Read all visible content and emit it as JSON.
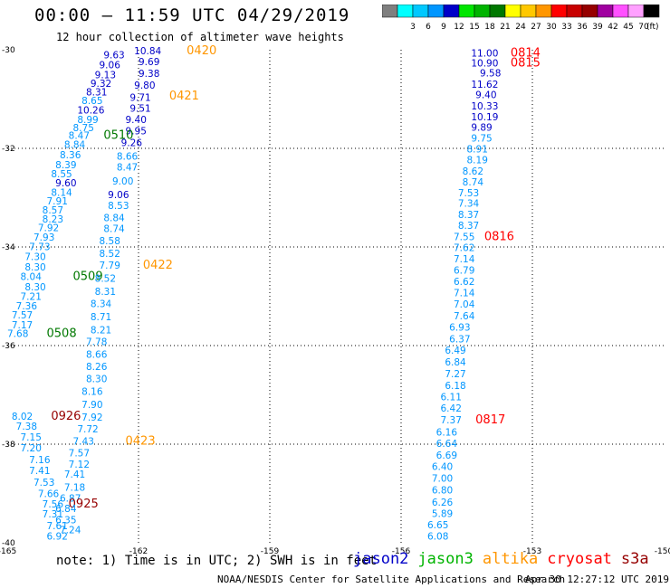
{
  "header": {
    "title": "00:00 – 11:59 UTC 04/29/2019",
    "subtitle": "12 hour collection of altimeter wave heights"
  },
  "colorbar": {
    "unit": "(ft)",
    "bins": [
      {
        "label": "",
        "color": "#7f7f7f"
      },
      {
        "label": "3",
        "color": "#00ffff"
      },
      {
        "label": "6",
        "color": "#00c8ff"
      },
      {
        "label": "9",
        "color": "#0096ff"
      },
      {
        "label": "12",
        "color": "#0000c8"
      },
      {
        "label": "15",
        "color": "#00e600"
      },
      {
        "label": "18",
        "color": "#00b400"
      },
      {
        "label": "21",
        "color": "#007800"
      },
      {
        "label": "24",
        "color": "#ffff00"
      },
      {
        "label": "27",
        "color": "#ffc800"
      },
      {
        "label": "30",
        "color": "#ff9600"
      },
      {
        "label": "33",
        "color": "#ff0000"
      },
      {
        "label": "36",
        "color": "#c80000"
      },
      {
        "label": "39",
        "color": "#960000"
      },
      {
        "label": "42",
        "color": "#a000a0"
      },
      {
        "label": "45",
        "color": "#ff50ff"
      },
      {
        "label": "70",
        "color": "#ffa0ff"
      },
      {
        "label": "",
        "color": "#000000"
      }
    ]
  },
  "map": {
    "lon_ticks": [
      "-165",
      "-162",
      "-159",
      "-156",
      "-153",
      "-150"
    ],
    "lat_ticks": [
      "-30",
      "-32",
      "-34",
      "-36",
      "-38",
      "-40"
    ],
    "lon_range": [
      -165,
      -150
    ],
    "lat_range": [
      -40,
      -30
    ],
    "gridlines": true
  },
  "observations": [
    {
      "v": "9.63",
      "c": "#0000c8",
      "lon": -162.8,
      "lat": -30.1
    },
    {
      "v": "10.84",
      "c": "#0000c8",
      "lon": -162.1,
      "lat": -30.02
    },
    {
      "v": "0420",
      "c": "#ff9600",
      "lon": -160.9,
      "lat": -30.02
    },
    {
      "v": "9.06",
      "c": "#0000c8",
      "lon": -162.9,
      "lat": -30.3
    },
    {
      "v": "9.69",
      "c": "#0000c8",
      "lon": -162.0,
      "lat": -30.24
    },
    {
      "v": "9.13",
      "c": "#0000c8",
      "lon": -163.0,
      "lat": -30.5
    },
    {
      "v": "9.38",
      "c": "#0000c8",
      "lon": -162.0,
      "lat": -30.48
    },
    {
      "v": "9.32",
      "c": "#0000c8",
      "lon": -163.1,
      "lat": -30.68
    },
    {
      "v": "9.80",
      "c": "#0000c8",
      "lon": -162.1,
      "lat": -30.72
    },
    {
      "v": "8.31",
      "c": "#0000c8",
      "lon": -163.2,
      "lat": -30.85
    },
    {
      "v": "8.65",
      "c": "#0096ff",
      "lon": -163.3,
      "lat": -31.03
    },
    {
      "v": "9.71",
      "c": "#0000c8",
      "lon": -162.2,
      "lat": -30.96
    },
    {
      "v": "0421",
      "c": "#ff9600",
      "lon": -161.3,
      "lat": -30.94
    },
    {
      "v": "10.26",
      "c": "#0000c8",
      "lon": -163.4,
      "lat": -31.22
    },
    {
      "v": "9.51",
      "c": "#0000c8",
      "lon": -162.2,
      "lat": -31.18
    },
    {
      "v": "8.99",
      "c": "#0096ff",
      "lon": -163.4,
      "lat": -31.41
    },
    {
      "v": "9.40",
      "c": "#0000c8",
      "lon": -162.3,
      "lat": -31.41
    },
    {
      "v": "8.75",
      "c": "#0096ff",
      "lon": -163.5,
      "lat": -31.58
    },
    {
      "v": "9.95",
      "c": "#0000c8",
      "lon": -162.3,
      "lat": -31.64
    },
    {
      "v": "8.47",
      "c": "#0096ff",
      "lon": -163.6,
      "lat": -31.73
    },
    {
      "v": "0510",
      "c": "#007800",
      "lon": -162.8,
      "lat": -31.73
    },
    {
      "v": "8.84",
      "c": "#0096ff",
      "lon": -163.7,
      "lat": -31.92
    },
    {
      "v": "9.26",
      "c": "#0000c8",
      "lon": -162.4,
      "lat": -31.88
    },
    {
      "v": "8.36",
      "c": "#0096ff",
      "lon": -163.8,
      "lat": -32.13
    },
    {
      "v": "8.66",
      "c": "#0096ff",
      "lon": -162.5,
      "lat": -32.16
    },
    {
      "v": "8.39",
      "c": "#0096ff",
      "lon": -163.9,
      "lat": -32.33
    },
    {
      "v": "8.47",
      "c": "#0096ff",
      "lon": -162.5,
      "lat": -32.38
    },
    {
      "v": "8.55",
      "c": "#0096ff",
      "lon": -164.0,
      "lat": -32.51
    },
    {
      "v": "9.60",
      "c": "#0000c8",
      "lon": -163.9,
      "lat": -32.7
    },
    {
      "v": "9.00",
      "c": "#0096ff",
      "lon": -162.6,
      "lat": -32.66
    },
    {
      "v": "8.14",
      "c": "#0096ff",
      "lon": -164.0,
      "lat": -32.89
    },
    {
      "v": "9.06",
      "c": "#0000c8",
      "lon": -162.7,
      "lat": -32.94
    },
    {
      "v": "7.91",
      "c": "#0096ff",
      "lon": -164.1,
      "lat": -33.06
    },
    {
      "v": "8.53",
      "c": "#0096ff",
      "lon": -162.7,
      "lat": -33.16
    },
    {
      "v": "8.57",
      "c": "#0096ff",
      "lon": -164.2,
      "lat": -33.25
    },
    {
      "v": "8.84",
      "c": "#0096ff",
      "lon": -162.8,
      "lat": -33.4
    },
    {
      "v": "8.23",
      "c": "#0096ff",
      "lon": -164.2,
      "lat": -33.43
    },
    {
      "v": "8.74",
      "c": "#0096ff",
      "lon": -162.8,
      "lat": -33.62
    },
    {
      "v": "7.92",
      "c": "#0096ff",
      "lon": -164.3,
      "lat": -33.61
    },
    {
      "v": "7.93",
      "c": "#0096ff",
      "lon": -164.4,
      "lat": -33.8
    },
    {
      "v": "8.58",
      "c": "#0096ff",
      "lon": -162.9,
      "lat": -33.87
    },
    {
      "v": "7.73",
      "c": "#0096ff",
      "lon": -164.5,
      "lat": -33.99
    },
    {
      "v": "8.52",
      "c": "#0096ff",
      "lon": -162.9,
      "lat": -34.13
    },
    {
      "v": "7.30",
      "c": "#0096ff",
      "lon": -164.6,
      "lat": -34.19
    },
    {
      "v": "7.79",
      "c": "#0096ff",
      "lon": -162.9,
      "lat": -34.37
    },
    {
      "v": "0422",
      "c": "#ff9600",
      "lon": -161.9,
      "lat": -34.37
    },
    {
      "v": "8.30",
      "c": "#0096ff",
      "lon": -164.6,
      "lat": -34.4
    },
    {
      "v": "8.04",
      "c": "#0096ff",
      "lon": -164.7,
      "lat": -34.6
    },
    {
      "v": "0509",
      "c": "#007800",
      "lon": -163.5,
      "lat": -34.6
    },
    {
      "v": "8.52",
      "c": "#0096ff",
      "lon": -163.0,
      "lat": -34.63
    },
    {
      "v": "8.30",
      "c": "#0096ff",
      "lon": -164.6,
      "lat": -34.81
    },
    {
      "v": "8.31",
      "c": "#0096ff",
      "lon": -163.0,
      "lat": -34.9
    },
    {
      "v": "7.21",
      "c": "#0096ff",
      "lon": -164.7,
      "lat": -35.0
    },
    {
      "v": "8.34",
      "c": "#0096ff",
      "lon": -163.1,
      "lat": -35.15
    },
    {
      "v": "7.36",
      "c": "#0096ff",
      "lon": -164.8,
      "lat": -35.19
    },
    {
      "v": "7.57",
      "c": "#0096ff",
      "lon": -164.9,
      "lat": -35.38
    },
    {
      "v": "8.71",
      "c": "#0096ff",
      "lon": -163.1,
      "lat": -35.41
    },
    {
      "v": "7.17",
      "c": "#0096ff",
      "lon": -164.9,
      "lat": -35.58
    },
    {
      "v": "8.21",
      "c": "#0096ff",
      "lon": -163.1,
      "lat": -35.68
    },
    {
      "v": "7.68",
      "c": "#0096ff",
      "lon": -165.0,
      "lat": -35.75
    },
    {
      "v": "0508",
      "c": "#007800",
      "lon": -164.1,
      "lat": -35.75
    },
    {
      "v": "7.78",
      "c": "#0096ff",
      "lon": -163.2,
      "lat": -35.92
    },
    {
      "v": "8.66",
      "c": "#0096ff",
      "lon": -163.2,
      "lat": -36.17
    },
    {
      "v": "8.26",
      "c": "#0096ff",
      "lon": -163.2,
      "lat": -36.42
    },
    {
      "v": "8.30",
      "c": "#0096ff",
      "lon": -163.2,
      "lat": -36.67
    },
    {
      "v": "8.16",
      "c": "#0096ff",
      "lon": -163.3,
      "lat": -36.93
    },
    {
      "v": "7.90",
      "c": "#0096ff",
      "lon": -163.3,
      "lat": -37.19
    },
    {
      "v": "8.02",
      "c": "#0096ff",
      "lon": -164.9,
      "lat": -37.43
    },
    {
      "v": "0926",
      "c": "#960000",
      "lon": -164.0,
      "lat": -37.43
    },
    {
      "v": "7.92",
      "c": "#0096ff",
      "lon": -163.3,
      "lat": -37.45
    },
    {
      "v": "7.38",
      "c": "#0096ff",
      "lon": -164.8,
      "lat": -37.63
    },
    {
      "v": "7.72",
      "c": "#0096ff",
      "lon": -163.4,
      "lat": -37.69
    },
    {
      "v": "7.15",
      "c": "#0096ff",
      "lon": -164.7,
      "lat": -37.85
    },
    {
      "v": "7.43",
      "c": "#0096ff",
      "lon": -163.5,
      "lat": -37.94
    },
    {
      "v": "0423",
      "c": "#ff9600",
      "lon": -162.3,
      "lat": -37.94
    },
    {
      "v": "7.20",
      "c": "#0096ff",
      "lon": -164.7,
      "lat": -38.07
    },
    {
      "v": "7.57",
      "c": "#0096ff",
      "lon": -163.6,
      "lat": -38.17
    },
    {
      "v": "7.16",
      "c": "#0096ff",
      "lon": -164.5,
      "lat": -38.31
    },
    {
      "v": "7.12",
      "c": "#0096ff",
      "lon": -163.6,
      "lat": -38.4
    },
    {
      "v": "7.41",
      "c": "#0096ff",
      "lon": -164.5,
      "lat": -38.53
    },
    {
      "v": "7.41",
      "c": "#0096ff",
      "lon": -163.7,
      "lat": -38.61
    },
    {
      "v": "7.53",
      "c": "#0096ff",
      "lon": -164.4,
      "lat": -38.77
    },
    {
      "v": "7.18",
      "c": "#0096ff",
      "lon": -163.7,
      "lat": -38.87
    },
    {
      "v": "7.66",
      "c": "#0096ff",
      "lon": -164.3,
      "lat": -39.0
    },
    {
      "v": "6.87",
      "c": "#0096ff",
      "lon": -163.8,
      "lat": -39.09
    },
    {
      "v": "7.56",
      "c": "#0096ff",
      "lon": -164.2,
      "lat": -39.21
    },
    {
      "v": "0925",
      "c": "#960000",
      "lon": -163.6,
      "lat": -39.21
    },
    {
      "v": "6.84",
      "c": "#0096ff",
      "lon": -163.9,
      "lat": -39.3
    },
    {
      "v": "7.31",
      "c": "#0096ff",
      "lon": -164.2,
      "lat": -39.41
    },
    {
      "v": "6.35",
      "c": "#0096ff",
      "lon": -163.9,
      "lat": -39.53
    },
    {
      "v": "7.61",
      "c": "#0096ff",
      "lon": -164.1,
      "lat": -39.65
    },
    {
      "v": "7.24",
      "c": "#0096ff",
      "lon": -163.8,
      "lat": -39.73
    },
    {
      "v": "6.92",
      "c": "#0096ff",
      "lon": -164.1,
      "lat": -39.86
    },
    {
      "v": "11.00",
      "c": "#0000c8",
      "lon": -154.4,
      "lat": -30.06
    },
    {
      "v": "0814",
      "c": "#ff0000",
      "lon": -153.5,
      "lat": -30.06
    },
    {
      "v": "10.90",
      "c": "#0000c8",
      "lon": -154.4,
      "lat": -30.27
    },
    {
      "v": "0815",
      "c": "#ff0000",
      "lon": -153.5,
      "lat": -30.27
    },
    {
      "v": "9.58",
      "c": "#0000c8",
      "lon": -154.2,
      "lat": -30.47
    },
    {
      "v": "11.62",
      "c": "#0000c8",
      "lon": -154.4,
      "lat": -30.7
    },
    {
      "v": "9.40",
      "c": "#0000c8",
      "lon": -154.3,
      "lat": -30.91
    },
    {
      "v": "10.33",
      "c": "#0000c8",
      "lon": -154.4,
      "lat": -31.14
    },
    {
      "v": "10.19",
      "c": "#0000c8",
      "lon": -154.4,
      "lat": -31.36
    },
    {
      "v": "9.89",
      "c": "#0000c8",
      "lon": -154.4,
      "lat": -31.57
    },
    {
      "v": "9.75",
      "c": "#0096ff",
      "lon": -154.4,
      "lat": -31.79
    },
    {
      "v": "8.91",
      "c": "#0096ff",
      "lon": -154.5,
      "lat": -32.01
    },
    {
      "v": "8.19",
      "c": "#0096ff",
      "lon": -154.5,
      "lat": -32.23
    },
    {
      "v": "8.62",
      "c": "#0096ff",
      "lon": -154.6,
      "lat": -32.46
    },
    {
      "v": "8.74",
      "c": "#0096ff",
      "lon": -154.6,
      "lat": -32.68
    },
    {
      "v": "7.53",
      "c": "#0096ff",
      "lon": -154.7,
      "lat": -32.9
    },
    {
      "v": "7.34",
      "c": "#0096ff",
      "lon": -154.7,
      "lat": -33.11
    },
    {
      "v": "8.37",
      "c": "#0096ff",
      "lon": -154.7,
      "lat": -33.34
    },
    {
      "v": "8.37",
      "c": "#0096ff",
      "lon": -154.7,
      "lat": -33.56
    },
    {
      "v": "7.55",
      "c": "#0096ff",
      "lon": -154.8,
      "lat": -33.79
    },
    {
      "v": "0816",
      "c": "#ff0000",
      "lon": -154.1,
      "lat": -33.79
    },
    {
      "v": "7.62",
      "c": "#0096ff",
      "lon": -154.8,
      "lat": -34.01
    },
    {
      "v": "7.14",
      "c": "#0096ff",
      "lon": -154.8,
      "lat": -34.24
    },
    {
      "v": "6.79",
      "c": "#0096ff",
      "lon": -154.8,
      "lat": -34.47
    },
    {
      "v": "6.62",
      "c": "#0096ff",
      "lon": -154.8,
      "lat": -34.7
    },
    {
      "v": "7.14",
      "c": "#0096ff",
      "lon": -154.8,
      "lat": -34.93
    },
    {
      "v": "7.04",
      "c": "#0096ff",
      "lon": -154.8,
      "lat": -35.16
    },
    {
      "v": "7.64",
      "c": "#0096ff",
      "lon": -154.8,
      "lat": -35.39
    },
    {
      "v": "6.93",
      "c": "#0096ff",
      "lon": -154.9,
      "lat": -35.62
    },
    {
      "v": "6.37",
      "c": "#0096ff",
      "lon": -154.9,
      "lat": -35.86
    },
    {
      "v": "6.49",
      "c": "#0096ff",
      "lon": -155.0,
      "lat": -36.09
    },
    {
      "v": "6.84",
      "c": "#0096ff",
      "lon": -155.0,
      "lat": -36.33
    },
    {
      "v": "7.27",
      "c": "#0096ff",
      "lon": -155.0,
      "lat": -36.57
    },
    {
      "v": "6.18",
      "c": "#0096ff",
      "lon": -155.0,
      "lat": -36.81
    },
    {
      "v": "6.11",
      "c": "#0096ff",
      "lon": -155.1,
      "lat": -37.04
    },
    {
      "v": "6.42",
      "c": "#0096ff",
      "lon": -155.1,
      "lat": -37.27
    },
    {
      "v": "7.37",
      "c": "#0096ff",
      "lon": -155.1,
      "lat": -37.5
    },
    {
      "v": "0817",
      "c": "#ff0000",
      "lon": -154.3,
      "lat": -37.5
    },
    {
      "v": "6.16",
      "c": "#0096ff",
      "lon": -155.2,
      "lat": -37.75
    },
    {
      "v": "6.64",
      "c": "#0096ff",
      "lon": -155.2,
      "lat": -37.98
    },
    {
      "v": "6.69",
      "c": "#0096ff",
      "lon": -155.2,
      "lat": -38.22
    },
    {
      "v": "6.40",
      "c": "#0096ff",
      "lon": -155.3,
      "lat": -38.45
    },
    {
      "v": "7.00",
      "c": "#0096ff",
      "lon": -155.3,
      "lat": -38.69
    },
    {
      "v": "6.80",
      "c": "#0096ff",
      "lon": -155.3,
      "lat": -38.93
    },
    {
      "v": "6.26",
      "c": "#0096ff",
      "lon": -155.3,
      "lat": -39.17
    },
    {
      "v": "5.89",
      "c": "#0096ff",
      "lon": -155.3,
      "lat": -39.4
    },
    {
      "v": "6.65",
      "c": "#0096ff",
      "lon": -155.4,
      "lat": -39.63
    },
    {
      "v": "6.08",
      "c": "#0096ff",
      "lon": -155.4,
      "lat": -39.86
    }
  ],
  "footer": {
    "note": "note: 1) Time is in UTC; 2) SWH is in feet",
    "satellites": [
      {
        "name": "jason2",
        "color": "#0000c8"
      },
      {
        "name": "jason3",
        "color": "#00b400"
      },
      {
        "name": "altika",
        "color": "#ff9600"
      },
      {
        "name": "cryosat",
        "color": "#ff0000"
      },
      {
        "name": "s3a",
        "color": "#960000"
      }
    ],
    "credit": "NOAA/NESDIS Center for Satellite Applications and Research",
    "timestamp": "Apr 30 12:27:12 UTC 2019"
  }
}
